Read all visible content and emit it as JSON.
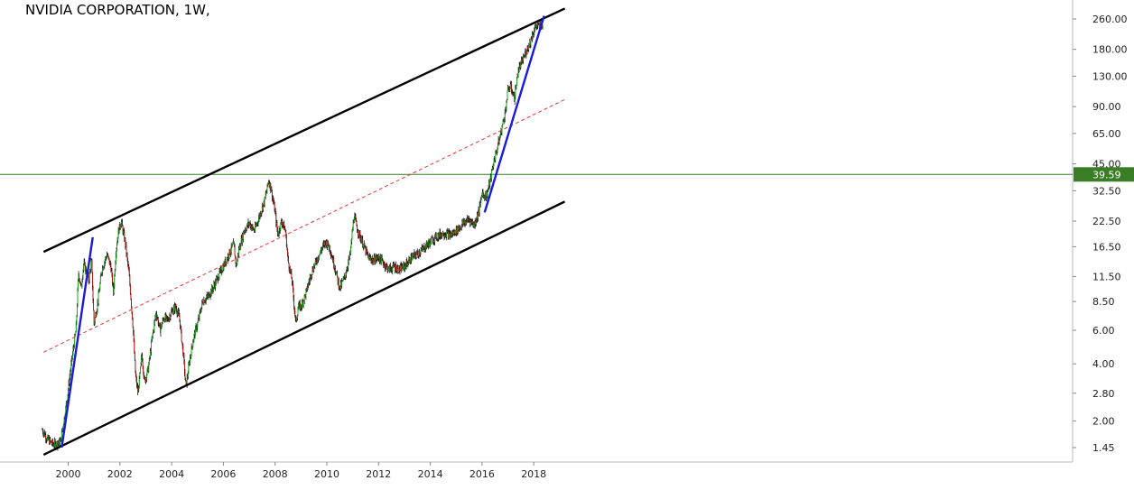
{
  "chart_data": {
    "type": "candlestick",
    "title": "NVIDIA CORPORATION,  1W,",
    "scale": "log",
    "x_axis": {
      "tick_labels": [
        "2000",
        "2002",
        "2004",
        "2006",
        "2008",
        "2010",
        "2012",
        "2014",
        "2016",
        "2018"
      ],
      "tick_years": [
        2000,
        2002,
        2004,
        2006,
        2008,
        2010,
        2012,
        2014,
        2016,
        2018
      ],
      "range": [
        1999.0,
        2019.2
      ]
    },
    "y_axis": {
      "position": "right",
      "tick_labels": [
        "260.00",
        "180.00",
        "130.00",
        "90.00",
        "65.00",
        "45.00",
        "32.50",
        "22.50",
        "16.50",
        "11.50",
        "8.50",
        "6.00",
        "4.00",
        "2.80",
        "2.00",
        "1.45"
      ],
      "tick_values": [
        260,
        180,
        130,
        90,
        65,
        45,
        32.5,
        22.5,
        16.5,
        11.5,
        8.5,
        6,
        4,
        2.8,
        2,
        1.45
      ],
      "range": [
        1.3,
        290
      ]
    },
    "price_line": {
      "value": 39.59,
      "label": "39.59",
      "color": "#3a7d27"
    },
    "channel_lines": [
      {
        "name": "upper channel",
        "color": "#000000",
        "points": [
          [
            1999.05,
            15.5
          ],
          [
            2019.2,
            295
          ]
        ]
      },
      {
        "name": "lower channel",
        "color": "#000000",
        "points": [
          [
            1999.05,
            1.33
          ],
          [
            2019.2,
            28.5
          ]
        ]
      },
      {
        "name": "midline",
        "color": "#e53935",
        "style": "dashed",
        "points": [
          [
            1999.05,
            4.6
          ],
          [
            2019.2,
            98
          ]
        ]
      }
    ],
    "trend_lines": [
      {
        "name": "trend 1999-2000",
        "color": "#1a1ad8",
        "points": [
          [
            1999.75,
            1.45
          ],
          [
            2000.95,
            18.5
          ]
        ]
      },
      {
        "name": "trend 2016-2018",
        "color": "#1a1ad8",
        "points": [
          [
            2016.1,
            25
          ],
          [
            2018.4,
            270
          ]
        ]
      }
    ],
    "price_path": [
      [
        1999.0,
        1.8
      ],
      [
        1999.2,
        1.6
      ],
      [
        1999.45,
        1.5
      ],
      [
        1999.7,
        1.55
      ],
      [
        1999.9,
        2.3
      ],
      [
        2000.1,
        3.8
      ],
      [
        2000.3,
        6.0
      ],
      [
        2000.4,
        12.0
      ],
      [
        2000.5,
        10.0
      ],
      [
        2000.6,
        13.5
      ],
      [
        2000.8,
        11.0
      ],
      [
        2000.9,
        14.0
      ],
      [
        2001.0,
        6.5
      ],
      [
        2001.15,
        8.5
      ],
      [
        2001.3,
        12.5
      ],
      [
        2001.5,
        15.0
      ],
      [
        2001.65,
        13.0
      ],
      [
        2001.75,
        9.5
      ],
      [
        2001.85,
        16.0
      ],
      [
        2001.95,
        20.0
      ],
      [
        2002.05,
        22.5
      ],
      [
        2002.2,
        17.5
      ],
      [
        2002.35,
        12.0
      ],
      [
        2002.5,
        6.5
      ],
      [
        2002.6,
        3.5
      ],
      [
        2002.7,
        2.8
      ],
      [
        2002.85,
        4.5
      ],
      [
        2002.95,
        3.2
      ],
      [
        2003.1,
        3.8
      ],
      [
        2003.25,
        5.5
      ],
      [
        2003.4,
        7.5
      ],
      [
        2003.55,
        6.0
      ],
      [
        2003.7,
        7.0
      ],
      [
        2003.85,
        6.8
      ],
      [
        2004.0,
        7.5
      ],
      [
        2004.15,
        8.0
      ],
      [
        2004.3,
        7.0
      ],
      [
        2004.45,
        4.5
      ],
      [
        2004.55,
        3.0
      ],
      [
        2004.7,
        4.2
      ],
      [
        2004.85,
        5.5
      ],
      [
        2005.0,
        6.5
      ],
      [
        2005.2,
        8.5
      ],
      [
        2005.4,
        9.0
      ],
      [
        2005.6,
        10.0
      ],
      [
        2005.8,
        11.5
      ],
      [
        2006.0,
        13.0
      ],
      [
        2006.2,
        15.0
      ],
      [
        2006.4,
        17.0
      ],
      [
        2006.5,
        13.0
      ],
      [
        2006.6,
        16.0
      ],
      [
        2006.8,
        20.0
      ],
      [
        2007.0,
        22.0
      ],
      [
        2007.2,
        20.0
      ],
      [
        2007.4,
        24.0
      ],
      [
        2007.6,
        29.0
      ],
      [
        2007.75,
        37.0
      ],
      [
        2007.85,
        33.0
      ],
      [
        2008.0,
        25.0
      ],
      [
        2008.1,
        19.0
      ],
      [
        2008.25,
        22.5
      ],
      [
        2008.4,
        20.0
      ],
      [
        2008.5,
        14.0
      ],
      [
        2008.65,
        11.0
      ],
      [
        2008.8,
        6.5
      ],
      [
        2008.9,
        8.0
      ],
      [
        2009.0,
        8.0
      ],
      [
        2009.2,
        9.5
      ],
      [
        2009.4,
        12.0
      ],
      [
        2009.6,
        14.0
      ],
      [
        2009.8,
        16.0
      ],
      [
        2009.95,
        17.5
      ],
      [
        2010.1,
        16.5
      ],
      [
        2010.3,
        13.0
      ],
      [
        2010.5,
        10.0
      ],
      [
        2010.7,
        11.5
      ],
      [
        2010.9,
        15.0
      ],
      [
        2011.05,
        24.0
      ],
      [
        2011.2,
        20.0
      ],
      [
        2011.4,
        17.0
      ],
      [
        2011.6,
        14.5
      ],
      [
        2011.8,
        14.0
      ],
      [
        2012.0,
        14.5
      ],
      [
        2012.2,
        13.5
      ],
      [
        2012.4,
        12.5
      ],
      [
        2012.6,
        13.0
      ],
      [
        2012.8,
        12.5
      ],
      [
        2013.0,
        13.0
      ],
      [
        2013.3,
        14.5
      ],
      [
        2013.6,
        15.5
      ],
      [
        2013.9,
        17.0
      ],
      [
        2014.2,
        18.5
      ],
      [
        2014.5,
        19.5
      ],
      [
        2014.8,
        19.0
      ],
      [
        2015.0,
        20.0
      ],
      [
        2015.3,
        22.0
      ],
      [
        2015.5,
        23.0
      ],
      [
        2015.7,
        21.5
      ],
      [
        2015.9,
        26.0
      ],
      [
        2016.0,
        32.0
      ],
      [
        2016.15,
        30.0
      ],
      [
        2016.3,
        36.0
      ],
      [
        2016.45,
        46.0
      ],
      [
        2016.6,
        55.0
      ],
      [
        2016.75,
        68.0
      ],
      [
        2016.9,
        85.0
      ],
      [
        2017.0,
        110.0
      ],
      [
        2017.1,
        115.0
      ],
      [
        2017.25,
        100.0
      ],
      [
        2017.4,
        140.0
      ],
      [
        2017.55,
        155.0
      ],
      [
        2017.7,
        175.0
      ],
      [
        2017.85,
        195.0
      ],
      [
        2018.0,
        225.0
      ],
      [
        2018.1,
        240.0
      ],
      [
        2018.2,
        235.0
      ],
      [
        2018.3,
        250.0
      ],
      [
        2018.35,
        230.0
      ]
    ]
  }
}
